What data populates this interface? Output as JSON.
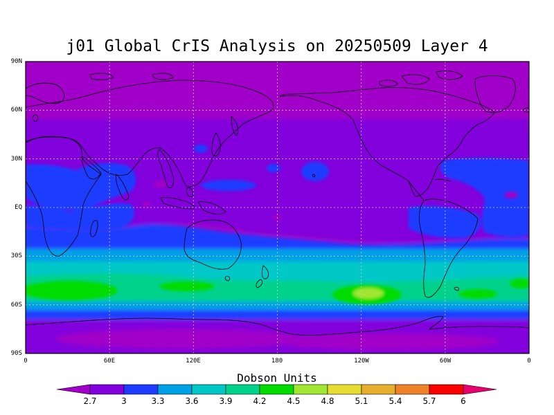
{
  "title": "j01 Global CrIS Analysis on 20250509 Layer 4",
  "colorbar": {
    "title": "Dobson Units",
    "levels": [
      "2.7",
      "3",
      "3.3",
      "3.6",
      "3.9",
      "4.2",
      "4.5",
      "4.8",
      "5.1",
      "5.4",
      "5.7",
      "6"
    ],
    "colors": [
      "#a000c8",
      "#8200dc",
      "#1e3cff",
      "#00a0e6",
      "#00c8c8",
      "#00d28c",
      "#00dc00",
      "#a0e632",
      "#e6dc32",
      "#e6af2d",
      "#f08228",
      "#fa0000",
      "#e6006e"
    ]
  },
  "map": {
    "y_tick_labels": [
      "90N",
      "60N",
      "30N",
      "EQ",
      "30S",
      "60S",
      "90S"
    ],
    "x_tick_labels": [
      "0",
      "60E",
      "120E",
      "180",
      "120W",
      "60W",
      "0"
    ],
    "central_longitude": 180,
    "grid": true,
    "coastline_color": "#000000"
  }
}
